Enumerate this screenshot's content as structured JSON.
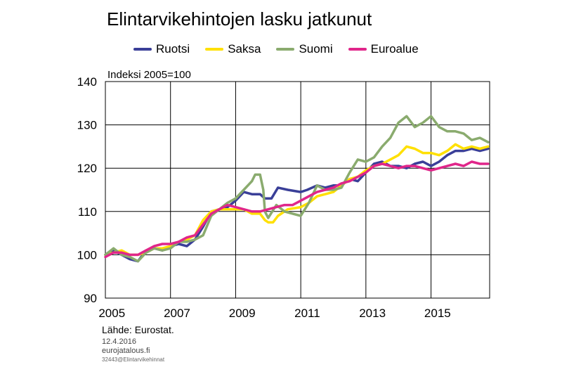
{
  "chart_data": {
    "type": "line",
    "title": "Elintarvikehintojen lasku jatkunut",
    "unit_label": "Indeksi 2005=100",
    "xlabel": "",
    "ylabel": "",
    "xlim": [
      2005.0,
      2016.8
    ],
    "ylim": [
      90,
      140
    ],
    "yticks": [
      90,
      100,
      110,
      120,
      130,
      140
    ],
    "xticks": [
      "2005",
      "2007",
      "2009",
      "2011",
      "2013",
      "2015"
    ],
    "grid": true,
    "legend_position": "top",
    "series": [
      {
        "name": "Ruotsi",
        "color": "#3a3f98",
        "points": [
          [
            2005.0,
            100.0
          ],
          [
            2005.25,
            101.0
          ],
          [
            2005.5,
            100.0
          ],
          [
            2005.75,
            99.0
          ],
          [
            2006.0,
            98.5
          ],
          [
            2006.25,
            101.0
          ],
          [
            2006.5,
            101.5
          ],
          [
            2006.75,
            101.0
          ],
          [
            2007.0,
            102.0
          ],
          [
            2007.25,
            102.5
          ],
          [
            2007.5,
            102.0
          ],
          [
            2007.75,
            103.5
          ],
          [
            2008.0,
            106.5
          ],
          [
            2008.25,
            110.0
          ],
          [
            2008.5,
            110.5
          ],
          [
            2008.75,
            111.0
          ],
          [
            2009.0,
            112.5
          ],
          [
            2009.25,
            114.5
          ],
          [
            2009.5,
            114.0
          ],
          [
            2009.75,
            114.0
          ],
          [
            2009.9,
            113.0
          ],
          [
            2010.1,
            113.0
          ],
          [
            2010.3,
            115.5
          ],
          [
            2010.6,
            115.0
          ],
          [
            2011.0,
            114.5
          ],
          [
            2011.2,
            115.0
          ],
          [
            2011.5,
            116.0
          ],
          [
            2011.75,
            115.5
          ],
          [
            2012.0,
            116.0
          ],
          [
            2012.25,
            116.0
          ],
          [
            2012.5,
            117.5
          ],
          [
            2012.75,
            117.0
          ],
          [
            2013.0,
            119.0
          ],
          [
            2013.25,
            121.0
          ],
          [
            2013.5,
            121.5
          ],
          [
            2013.75,
            120.5
          ],
          [
            2014.0,
            120.5
          ],
          [
            2014.25,
            120.0
          ],
          [
            2014.5,
            121.0
          ],
          [
            2014.75,
            121.5
          ],
          [
            2015.0,
            120.5
          ],
          [
            2015.25,
            121.5
          ],
          [
            2015.5,
            123.0
          ],
          [
            2015.75,
            124.0
          ],
          [
            2016.0,
            124.0
          ],
          [
            2016.25,
            124.5
          ],
          [
            2016.5,
            124.0
          ],
          [
            2016.75,
            124.5
          ]
        ]
      },
      {
        "name": "Saksa",
        "color": "#ffe000",
        "points": [
          [
            2005.0,
            100.0
          ],
          [
            2005.25,
            100.5
          ],
          [
            2005.5,
            101.0
          ],
          [
            2005.75,
            100.0
          ],
          [
            2006.0,
            100.0
          ],
          [
            2006.25,
            100.5
          ],
          [
            2006.5,
            101.5
          ],
          [
            2006.75,
            101.5
          ],
          [
            2007.0,
            102.0
          ],
          [
            2007.25,
            103.0
          ],
          [
            2007.5,
            103.5
          ],
          [
            2007.75,
            104.5
          ],
          [
            2008.0,
            108.0
          ],
          [
            2008.25,
            110.0
          ],
          [
            2008.5,
            110.5
          ],
          [
            2008.75,
            110.5
          ],
          [
            2009.0,
            110.5
          ],
          [
            2009.25,
            110.5
          ],
          [
            2009.5,
            109.5
          ],
          [
            2009.75,
            109.5
          ],
          [
            2009.9,
            108.0
          ],
          [
            2010.0,
            107.5
          ],
          [
            2010.15,
            107.5
          ],
          [
            2010.3,
            109.0
          ],
          [
            2010.6,
            110.5
          ],
          [
            2011.0,
            111.0
          ],
          [
            2011.25,
            112.0
          ],
          [
            2011.5,
            113.5
          ],
          [
            2011.75,
            114.0
          ],
          [
            2012.0,
            114.5
          ],
          [
            2012.25,
            116.0
          ],
          [
            2012.5,
            117.5
          ],
          [
            2012.75,
            118.0
          ],
          [
            2013.0,
            119.5
          ],
          [
            2013.25,
            120.5
          ],
          [
            2013.5,
            121.0
          ],
          [
            2013.75,
            122.0
          ],
          [
            2014.0,
            123.0
          ],
          [
            2014.25,
            125.0
          ],
          [
            2014.5,
            124.5
          ],
          [
            2014.75,
            123.5
          ],
          [
            2015.0,
            123.5
          ],
          [
            2015.25,
            123.0
          ],
          [
            2015.5,
            124.0
          ],
          [
            2015.75,
            125.5
          ],
          [
            2016.0,
            124.5
          ],
          [
            2016.25,
            125.0
          ],
          [
            2016.5,
            124.5
          ],
          [
            2016.75,
            125.0
          ]
        ]
      },
      {
        "name": "Suomi",
        "color": "#8aab6e",
        "points": [
          [
            2005.0,
            100.0
          ],
          [
            2005.25,
            101.5
          ],
          [
            2005.5,
            100.0
          ],
          [
            2005.75,
            99.5
          ],
          [
            2006.0,
            98.5
          ],
          [
            2006.25,
            100.5
          ],
          [
            2006.5,
            101.5
          ],
          [
            2006.75,
            101.0
          ],
          [
            2007.0,
            101.5
          ],
          [
            2007.25,
            103.0
          ],
          [
            2007.5,
            103.0
          ],
          [
            2007.75,
            103.5
          ],
          [
            2008.0,
            104.5
          ],
          [
            2008.25,
            109.0
          ],
          [
            2008.5,
            110.5
          ],
          [
            2008.75,
            112.0
          ],
          [
            2009.0,
            113.0
          ],
          [
            2009.25,
            115.0
          ],
          [
            2009.5,
            117.0
          ],
          [
            2009.6,
            118.5
          ],
          [
            2009.75,
            118.5
          ],
          [
            2009.85,
            115.0
          ],
          [
            2009.9,
            110.0
          ],
          [
            2010.0,
            108.5
          ],
          [
            2010.25,
            111.5
          ],
          [
            2010.5,
            110.0
          ],
          [
            2010.75,
            109.5
          ],
          [
            2011.0,
            109.0
          ],
          [
            2011.25,
            112.0
          ],
          [
            2011.5,
            116.0
          ],
          [
            2011.75,
            115.0
          ],
          [
            2012.0,
            115.0
          ],
          [
            2012.25,
            115.5
          ],
          [
            2012.5,
            119.0
          ],
          [
            2012.75,
            122.0
          ],
          [
            2013.0,
            121.5
          ],
          [
            2013.25,
            122.5
          ],
          [
            2013.5,
            125.0
          ],
          [
            2013.75,
            127.0
          ],
          [
            2014.0,
            130.5
          ],
          [
            2014.25,
            132.0
          ],
          [
            2014.5,
            129.5
          ],
          [
            2014.75,
            130.5
          ],
          [
            2015.0,
            132.0
          ],
          [
            2015.25,
            129.5
          ],
          [
            2015.5,
            128.5
          ],
          [
            2015.75,
            128.5
          ],
          [
            2016.0,
            128.0
          ],
          [
            2016.25,
            126.5
          ],
          [
            2016.5,
            127.0
          ],
          [
            2016.75,
            126.0
          ]
        ]
      },
      {
        "name": "Euroalue",
        "color": "#e0268a",
        "points": [
          [
            2005.0,
            99.5
          ],
          [
            2005.25,
            100.5
          ],
          [
            2005.5,
            100.5
          ],
          [
            2005.75,
            100.0
          ],
          [
            2006.0,
            100.0
          ],
          [
            2006.25,
            101.0
          ],
          [
            2006.5,
            102.0
          ],
          [
            2006.75,
            102.5
          ],
          [
            2007.0,
            102.5
          ],
          [
            2007.25,
            103.0
          ],
          [
            2007.5,
            104.0
          ],
          [
            2007.75,
            104.5
          ],
          [
            2008.0,
            107.0
          ],
          [
            2008.25,
            109.5
          ],
          [
            2008.5,
            110.5
          ],
          [
            2008.75,
            111.5
          ],
          [
            2009.0,
            111.0
          ],
          [
            2009.25,
            110.5
          ],
          [
            2009.5,
            110.0
          ],
          [
            2009.75,
            110.0
          ],
          [
            2010.0,
            110.5
          ],
          [
            2010.25,
            111.0
          ],
          [
            2010.5,
            111.5
          ],
          [
            2010.75,
            111.5
          ],
          [
            2011.0,
            112.5
          ],
          [
            2011.25,
            113.5
          ],
          [
            2011.5,
            114.5
          ],
          [
            2011.75,
            115.0
          ],
          [
            2012.0,
            115.5
          ],
          [
            2012.25,
            116.5
          ],
          [
            2012.5,
            117.0
          ],
          [
            2012.75,
            118.0
          ],
          [
            2013.0,
            119.0
          ],
          [
            2013.25,
            120.5
          ],
          [
            2013.5,
            121.0
          ],
          [
            2013.75,
            120.5
          ],
          [
            2014.0,
            120.0
          ],
          [
            2014.25,
            120.5
          ],
          [
            2014.5,
            120.5
          ],
          [
            2014.75,
            120.0
          ],
          [
            2015.0,
            119.5
          ],
          [
            2015.25,
            120.0
          ],
          [
            2015.5,
            120.5
          ],
          [
            2015.75,
            121.0
          ],
          [
            2016.0,
            120.5
          ],
          [
            2016.25,
            121.5
          ],
          [
            2016.5,
            121.0
          ],
          [
            2016.75,
            121.0
          ]
        ]
      }
    ]
  },
  "footer": {
    "source": "Lähde: Eurostat.",
    "date": "12.4.2016",
    "site": "eurojatalous.fi",
    "code": "32443@Elintarvikehinnat"
  }
}
